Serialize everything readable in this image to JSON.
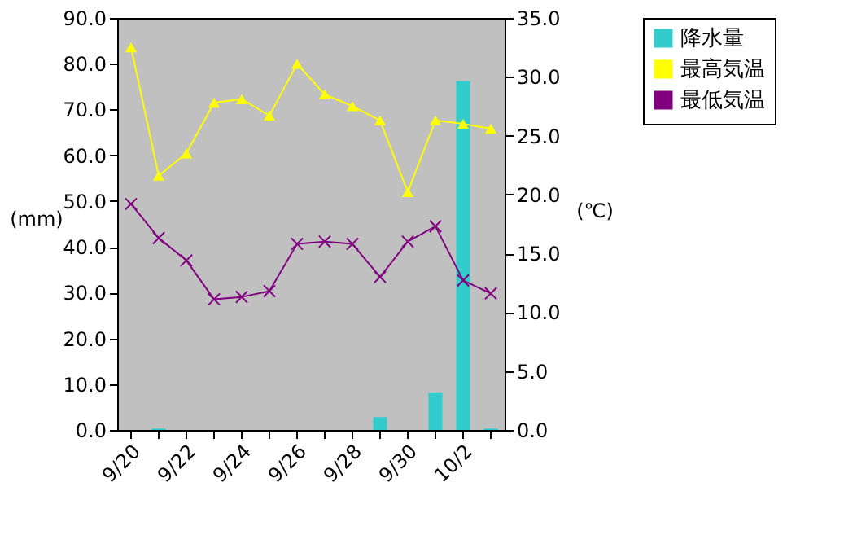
{
  "chart_data": {
    "type": "bar",
    "categories": [
      "9/20",
      null,
      "9/22",
      null,
      "9/24",
      null,
      "9/26",
      null,
      "9/28",
      null,
      "9/30",
      null,
      "10/2",
      null
    ],
    "ylabel": "(mm)",
    "y2label": "(℃)",
    "ylim": [
      0,
      90
    ],
    "yticks": [
      {
        "value": 0,
        "label": "0.0"
      },
      {
        "value": 10,
        "label": "10.0"
      },
      {
        "value": 20,
        "label": "20.0"
      },
      {
        "value": 30,
        "label": "30.0"
      },
      {
        "value": 40,
        "label": "40.0"
      },
      {
        "value": 50,
        "label": "50.0"
      },
      {
        "value": 60,
        "label": "60.0"
      },
      {
        "value": 70,
        "label": "70.0"
      },
      {
        "value": 80,
        "label": "80.0"
      },
      {
        "value": 90,
        "label": "90.0"
      }
    ],
    "y2lim": [
      0,
      35
    ],
    "y2ticks": [
      {
        "value": 0,
        "label": "0.0"
      },
      {
        "value": 5,
        "label": "5.0"
      },
      {
        "value": 10,
        "label": "10.0"
      },
      {
        "value": 15,
        "label": "15.0"
      },
      {
        "value": 20,
        "label": "20.0"
      },
      {
        "value": 25,
        "label": "25.0"
      },
      {
        "value": 30,
        "label": "30.0"
      },
      {
        "value": 35,
        "label": "35.0"
      }
    ],
    "series": [
      {
        "name": "降水量",
        "color": "#33cccc",
        "values": [
          0,
          0.3,
          0,
          0,
          0,
          0,
          0,
          0,
          0,
          2.8,
          0,
          8.2,
          76.2,
          0.3
        ]
      },
      {
        "name": "最高気温",
        "type": "line",
        "axis": "y2",
        "marker": "triangle",
        "color": "#ffff00",
        "values": [
          32.5,
          21.6,
          23.5,
          27.8,
          28.1,
          26.7,
          31.1,
          28.5,
          27.5,
          26.3,
          20.2,
          26.3,
          26.0,
          25.6
        ]
      },
      {
        "name": "最低気温",
        "type": "line",
        "axis": "y2",
        "marker": "cross",
        "color": "#800080",
        "values": [
          19.2,
          16.3,
          14.4,
          11.1,
          11.3,
          11.8,
          15.8,
          16.0,
          15.8,
          13.0,
          16.0,
          17.3,
          12.7,
          11.6
        ]
      }
    ],
    "legend": "right",
    "grid": false
  }
}
